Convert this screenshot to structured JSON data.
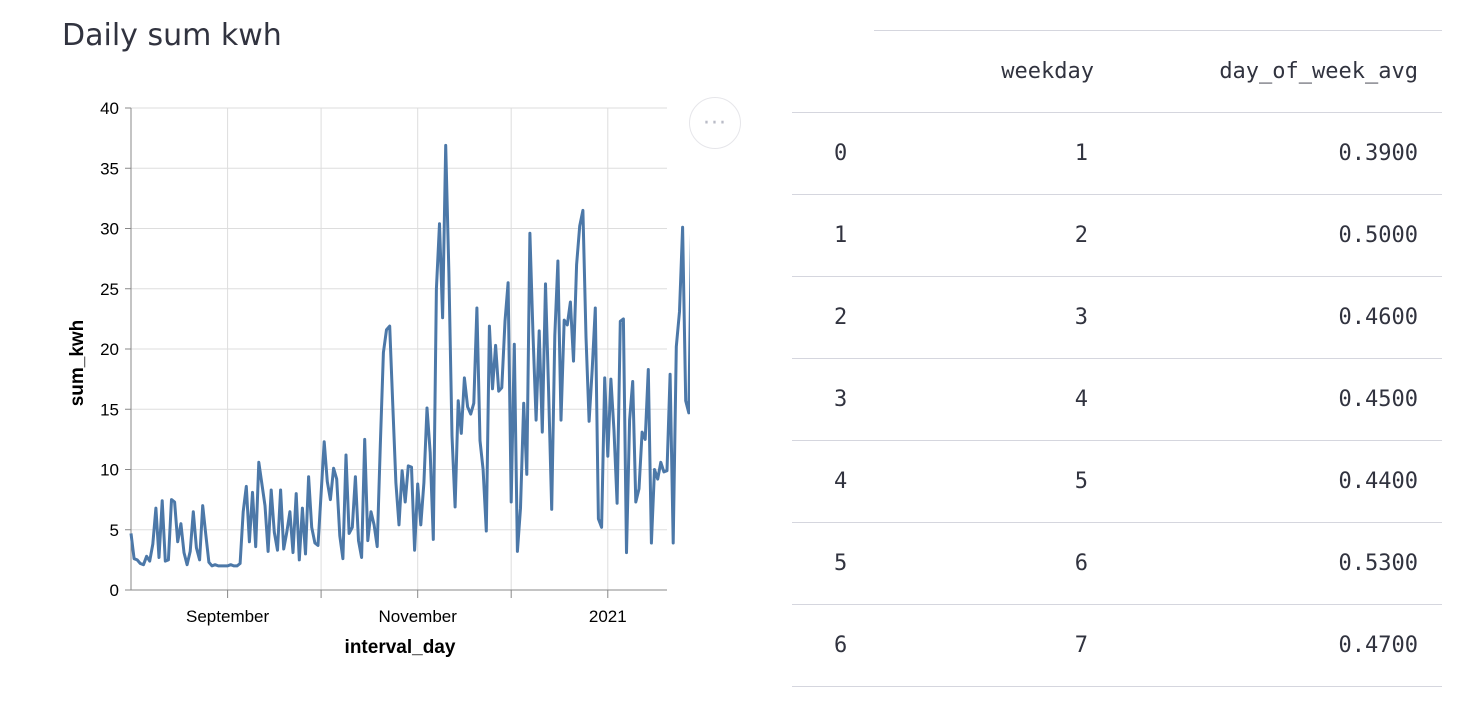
{
  "title": "Daily sum kwh",
  "menu_icon": "···",
  "chart_data": {
    "type": "line",
    "xlabel": "interval_day",
    "ylabel": "sum_kwh",
    "ylim": [
      0,
      40
    ],
    "yticks": [
      0,
      5,
      10,
      15,
      20,
      25,
      30,
      35,
      40
    ],
    "x_tick_labels": [
      "September",
      "November",
      "2021"
    ],
    "x_range": [
      "2020-08-01",
      "2021-01-20"
    ],
    "x_tick_dates": [
      "2020-09-01",
      "2020-10-01",
      "2020-11-01",
      "2020-12-01",
      "2021-01-01"
    ],
    "x_labeled_dates": [
      "2020-09-01",
      "2020-11-01",
      "2021-01-01"
    ],
    "grid": true,
    "color": "#4c78a8",
    "series": [
      {
        "start_date": "2020-08-01",
        "values": [
          4.7,
          2.6,
          2.5,
          2.2,
          2.1,
          2.8,
          2.4,
          3.8,
          6.8,
          2.7,
          7.4,
          2.4,
          2.5,
          7.5,
          7.3,
          4.0,
          5.5,
          3.1,
          2.1,
          3.2,
          6.5,
          3.5,
          2.5,
          7.0,
          4.6,
          2.3,
          2.0,
          2.1,
          2.0,
          2.0,
          2.0,
          2.0,
          2.1,
          2.0,
          2.0,
          2.2,
          6.5,
          8.6,
          4.0,
          8.1,
          3.6,
          10.6,
          8.8,
          7.0,
          3.2,
          8.3,
          4.8,
          3.3,
          8.3,
          3.4,
          4.8,
          6.5,
          3.1,
          8.0,
          2.5,
          6.8,
          3.0,
          9.4,
          5.2,
          3.9,
          3.7,
          8.0,
          12.3,
          9.0,
          7.5,
          10.1,
          9.2,
          4.5,
          2.6,
          11.2,
          4.7,
          5.2,
          9.4,
          4.1,
          2.7,
          12.5,
          4.1,
          6.5,
          5.4,
          3.6,
          12.0,
          19.7,
          21.6,
          21.9,
          15.3,
          8.9,
          5.4,
          9.9,
          7.3,
          10.3,
          10.2,
          3.3,
          8.8,
          5.4,
          8.9,
          15.1,
          11.4,
          4.2,
          25.0,
          30.4,
          22.6,
          36.9,
          26.3,
          12.8,
          6.9,
          15.7,
          13.0,
          17.6,
          15.2,
          14.6,
          15.5,
          23.4,
          12.4,
          10.0,
          4.9,
          21.9,
          16.7,
          20.3,
          16.5,
          16.8,
          22.3,
          25.5,
          7.3,
          20.4,
          3.2,
          6.8,
          15.5,
          9.6,
          29.6,
          21.2,
          14.1,
          21.5,
          13.1,
          25.4,
          16.5,
          6.7,
          21.1,
          27.3,
          14.1,
          22.4,
          22.0,
          23.9,
          19.0,
          27.0,
          30.2,
          31.5,
          21.0,
          14.0,
          18.3,
          23.4,
          5.9,
          5.2,
          17.6,
          11.1,
          17.5,
          13.2,
          7.2,
          22.3,
          22.5,
          3.1,
          14.1,
          17.3,
          7.3,
          8.4,
          13.1,
          12.5,
          18.3,
          3.9,
          10.0,
          9.2,
          10.6,
          9.8,
          9.9,
          17.9,
          3.9,
          20.2,
          23.1,
          30.1,
          15.7,
          14.7,
          31.8
        ]
      }
    ]
  },
  "table": {
    "headers": [
      "",
      "weekday",
      "day_of_week_avg"
    ],
    "rows": [
      [
        "0",
        "1",
        "0.3900"
      ],
      [
        "1",
        "2",
        "0.5000"
      ],
      [
        "2",
        "3",
        "0.4600"
      ],
      [
        "3",
        "4",
        "0.4500"
      ],
      [
        "4",
        "5",
        "0.4400"
      ],
      [
        "5",
        "6",
        "0.5300"
      ],
      [
        "6",
        "7",
        "0.4700"
      ]
    ]
  }
}
